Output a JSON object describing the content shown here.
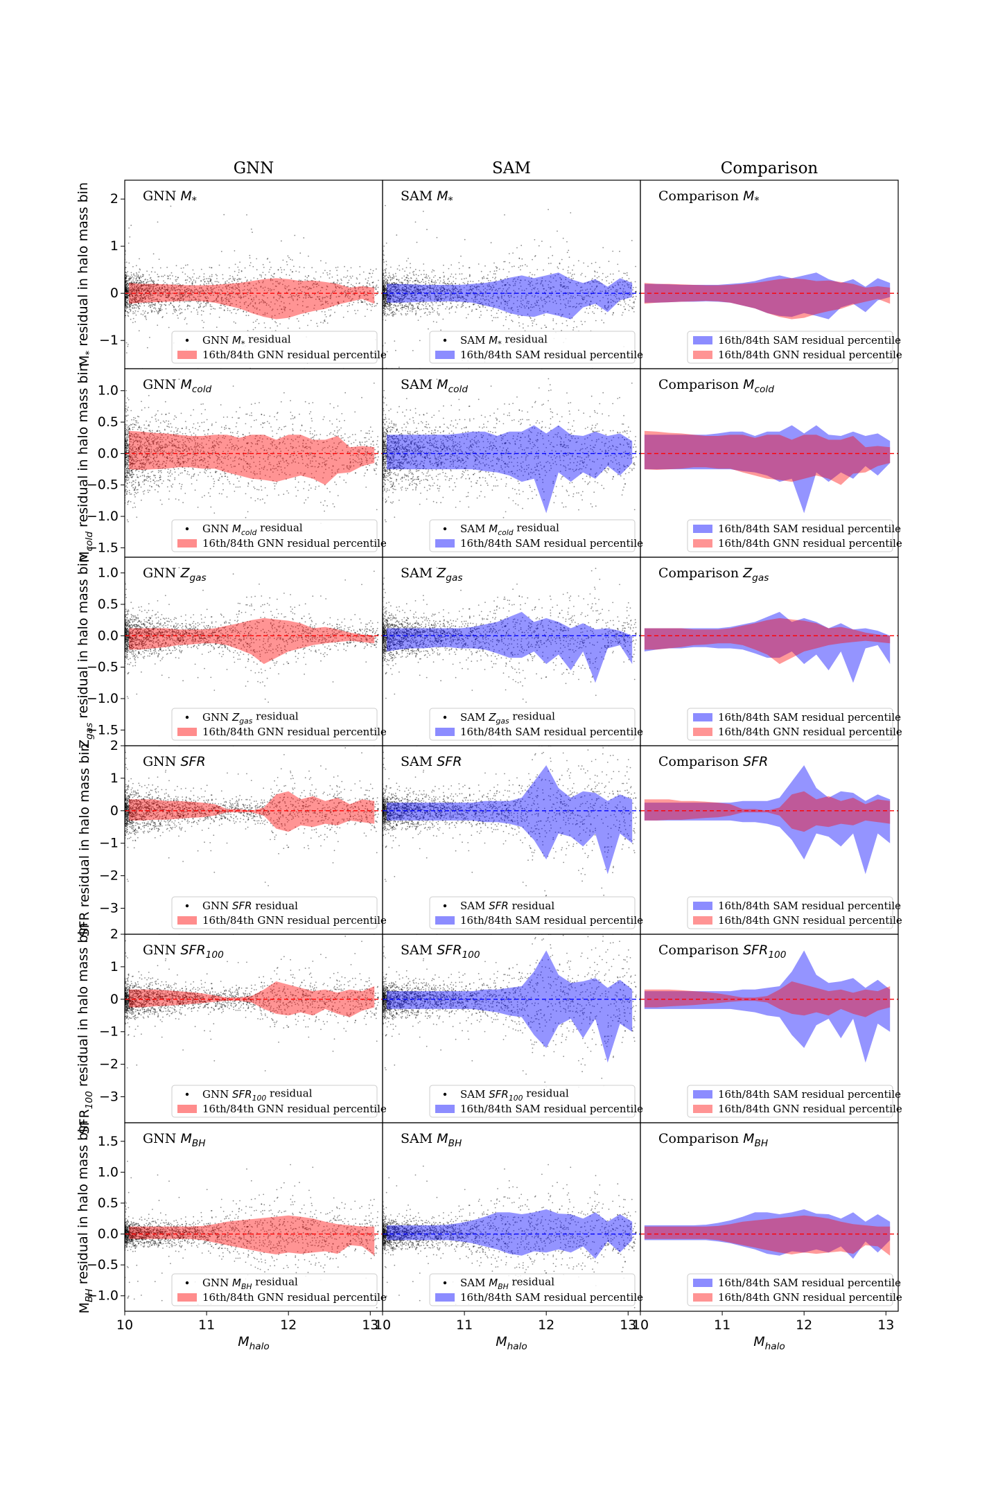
{
  "column_titles": [
    "GNN",
    "SAM",
    "Comparison"
  ],
  "x_axis": {
    "label": "M",
    "label_sub": "halo",
    "lim": [
      10,
      13.15
    ],
    "ticks": [
      10,
      11,
      12,
      13
    ]
  },
  "colors": {
    "gnn": "#ff0000",
    "sam": "#0000ff",
    "points": "#000000"
  },
  "chart_data": [
    {
      "quantity": "M*",
      "type": "scatter+area",
      "ylabel": {
        "pre": "M",
        "sub": "*",
        "post": " residual in halo mass bin"
      },
      "ylim": [
        -1.6,
        2.4
      ],
      "yticks": [
        -1,
        0,
        1,
        2
      ],
      "panel_labels": {
        "gnn": {
          "pre": "GNN ",
          "math": "M",
          "sub": "*"
        },
        "sam": {
          "pre": "SAM ",
          "math": "M",
          "sub": "*"
        },
        "cmp": {
          "pre": "Comparison ",
          "math": "M",
          "sub": "*"
        }
      },
      "legend": {
        "gnn_point": {
          "pre": "GNN ",
          "math": "M",
          "sub": "*",
          "post": " residual"
        },
        "gnn_band": "16th/84th GNN residual percentile",
        "sam_point": {
          "pre": "SAM ",
          "math": "M",
          "sub": "*",
          "post": " residual"
        },
        "sam_band": "16th/84th SAM residual percentile"
      },
      "x": [
        10.05,
        10.2,
        10.35,
        10.5,
        10.65,
        10.8,
        10.95,
        11.1,
        11.25,
        11.4,
        11.55,
        11.7,
        11.85,
        12.0,
        12.15,
        12.3,
        12.45,
        12.6,
        12.75,
        12.9,
        13.05
      ],
      "gnn": {
        "upper": [
          0.22,
          0.2,
          0.2,
          0.19,
          0.18,
          0.17,
          0.17,
          0.18,
          0.2,
          0.22,
          0.26,
          0.3,
          0.32,
          0.3,
          0.26,
          0.27,
          0.24,
          0.2,
          0.12,
          0.15,
          0.12
        ],
        "lower": [
          -0.22,
          -0.2,
          -0.19,
          -0.18,
          -0.17,
          -0.16,
          -0.17,
          -0.2,
          -0.26,
          -0.32,
          -0.42,
          -0.5,
          -0.55,
          -0.52,
          -0.44,
          -0.38,
          -0.33,
          -0.24,
          -0.18,
          -0.12,
          -0.22
        ]
      },
      "sam": {
        "upper": [
          0.2,
          0.2,
          0.19,
          0.18,
          0.18,
          0.18,
          0.18,
          0.2,
          0.22,
          0.26,
          0.33,
          0.38,
          0.32,
          0.38,
          0.44,
          0.3,
          0.22,
          0.3,
          0.14,
          0.32,
          0.22
        ],
        "lower": [
          -0.2,
          -0.2,
          -0.19,
          -0.18,
          -0.18,
          -0.17,
          -0.18,
          -0.2,
          -0.26,
          -0.32,
          -0.42,
          -0.48,
          -0.5,
          -0.42,
          -0.48,
          -0.55,
          -0.3,
          -0.22,
          -0.4,
          -0.15,
          -0.08
        ]
      },
      "spread": 0.36,
      "heavy_tail_up": 1.9,
      "heavy_tail_down": 1.2
    },
    {
      "quantity": "Mcold",
      "type": "scatter+area",
      "ylabel": {
        "pre": "M",
        "sub": "cold",
        "post": " residual in halo mass bin"
      },
      "ylim": [
        -1.65,
        1.35
      ],
      "yticks": [
        -1.5,
        -1.0,
        -0.5,
        0.0,
        0.5,
        1.0
      ],
      "panel_labels": {
        "gnn": {
          "pre": "GNN ",
          "math": "M",
          "sub": "cold"
        },
        "sam": {
          "pre": "SAM ",
          "math": "M",
          "sub": "cold"
        },
        "cmp": {
          "pre": "Comparison ",
          "math": "M",
          "sub": "cold"
        }
      },
      "legend": {
        "gnn_point": {
          "pre": "GNN ",
          "math": "M",
          "sub": "cold",
          "post": " residual"
        },
        "gnn_band": "16th/84th GNN residual percentile",
        "sam_point": {
          "pre": "SAM ",
          "math": "M",
          "sub": "cold",
          "post": " residual"
        },
        "sam_band": "16th/84th SAM residual percentile"
      },
      "x": [
        10.05,
        10.2,
        10.35,
        10.5,
        10.65,
        10.8,
        10.95,
        11.1,
        11.25,
        11.4,
        11.55,
        11.7,
        11.85,
        12.0,
        12.15,
        12.3,
        12.45,
        12.6,
        12.75,
        12.9,
        13.05
      ],
      "gnn": {
        "upper": [
          0.36,
          0.35,
          0.33,
          0.32,
          0.3,
          0.28,
          0.28,
          0.3,
          0.3,
          0.25,
          0.3,
          0.3,
          0.22,
          0.3,
          0.3,
          0.22,
          0.22,
          0.28,
          0.1,
          0.12,
          0.1
        ],
        "lower": [
          -0.25,
          -0.26,
          -0.25,
          -0.24,
          -0.22,
          -0.22,
          -0.24,
          -0.24,
          -0.3,
          -0.35,
          -0.4,
          -0.42,
          -0.45,
          -0.4,
          -0.35,
          -0.4,
          -0.5,
          -0.32,
          -0.3,
          -0.2,
          -0.15
        ]
      },
      "sam": {
        "upper": [
          0.3,
          0.3,
          0.3,
          0.3,
          0.3,
          0.3,
          0.32,
          0.35,
          0.35,
          0.28,
          0.35,
          0.35,
          0.45,
          0.32,
          0.45,
          0.3,
          0.28,
          0.35,
          0.28,
          0.32,
          0.2
        ],
        "lower": [
          -0.25,
          -0.25,
          -0.25,
          -0.25,
          -0.25,
          -0.25,
          -0.25,
          -0.25,
          -0.28,
          -0.3,
          -0.35,
          -0.45,
          -0.4,
          -0.95,
          -0.3,
          -0.45,
          -0.3,
          -0.4,
          -0.2,
          -0.35,
          -0.15
        ]
      },
      "spread": 0.3,
      "heavy_tail_up": 0.9,
      "heavy_tail_down": 1.2
    },
    {
      "quantity": "Zgas",
      "type": "scatter+area",
      "ylabel": {
        "pre": "Z",
        "sub": "gas",
        "post": " residual in halo mass bin"
      },
      "ylim": [
        -1.75,
        1.25
      ],
      "yticks": [
        -1.5,
        -1.0,
        -0.5,
        0.0,
        0.5,
        1.0
      ],
      "panel_labels": {
        "gnn": {
          "pre": "GNN ",
          "math": "Z",
          "sub": "gas"
        },
        "sam": {
          "pre": "SAM ",
          "math": "Z",
          "sub": "gas"
        },
        "cmp": {
          "pre": "Comparison ",
          "math": "Z",
          "sub": "gas"
        }
      },
      "legend": {
        "gnn_point": {
          "pre": "GNN ",
          "math": "Z",
          "sub": "gas",
          "post": " residual"
        },
        "gnn_band": "16th/84th GNN residual percentile",
        "sam_point": {
          "pre": "SAM ",
          "math": "Z",
          "sub": "gas",
          "post": " residual"
        },
        "sam_band": "16th/84th SAM residual percentile"
      },
      "x": [
        10.05,
        10.2,
        10.35,
        10.5,
        10.65,
        10.8,
        10.95,
        11.1,
        11.25,
        11.4,
        11.55,
        11.7,
        11.85,
        12.0,
        12.15,
        12.3,
        12.45,
        12.6,
        12.75,
        12.9,
        13.05
      ],
      "gnn": {
        "upper": [
          0.12,
          0.12,
          0.12,
          0.12,
          0.1,
          0.1,
          0.1,
          0.12,
          0.16,
          0.2,
          0.25,
          0.28,
          0.26,
          0.24,
          0.2,
          0.12,
          0.14,
          0.1,
          0.05,
          0.02,
          0.0
        ],
        "lower": [
          -0.22,
          -0.22,
          -0.2,
          -0.18,
          -0.15,
          -0.14,
          -0.12,
          -0.12,
          -0.15,
          -0.22,
          -0.3,
          -0.45,
          -0.35,
          -0.25,
          -0.2,
          -0.15,
          -0.12,
          -0.1,
          -0.08,
          -0.1,
          -0.12
        ]
      },
      "sam": {
        "upper": [
          0.12,
          0.12,
          0.12,
          0.12,
          0.12,
          0.12,
          0.12,
          0.14,
          0.18,
          0.22,
          0.3,
          0.38,
          0.22,
          0.28,
          0.22,
          0.12,
          0.2,
          0.1,
          0.12,
          0.08,
          0.0
        ],
        "lower": [
          -0.25,
          -0.22,
          -0.2,
          -0.2,
          -0.18,
          -0.18,
          -0.2,
          -0.2,
          -0.22,
          -0.28,
          -0.35,
          -0.35,
          -0.25,
          -0.45,
          -0.3,
          -0.55,
          -0.25,
          -0.75,
          -0.2,
          -0.15,
          -0.45
        ]
      },
      "spread": 0.17,
      "heavy_tail_up": 0.7,
      "heavy_tail_down": 1.1
    },
    {
      "quantity": "SFR",
      "type": "scatter+area",
      "ylabel": {
        "pre": "SFR",
        "sub": "",
        "post": " residual in halo mass bin"
      },
      "ylim": [
        -3.8,
        2.0
      ],
      "yticks": [
        -3,
        -2,
        -1,
        0,
        1,
        2
      ],
      "panel_labels": {
        "gnn": {
          "pre": "GNN ",
          "math": "SFR",
          "sub": ""
        },
        "sam": {
          "pre": "SAM ",
          "math": "SFR",
          "sub": ""
        },
        "cmp": {
          "pre": "Comparison ",
          "math": "SFR",
          "sub": ""
        }
      },
      "legend": {
        "gnn_point": {
          "pre": "GNN ",
          "math": "SFR",
          "sub": "",
          "post": " residual"
        },
        "gnn_band": "16th/84th GNN residual percentile",
        "sam_point": {
          "pre": "SAM ",
          "math": "SFR",
          "sub": "",
          "post": " residual"
        },
        "sam_band": "16th/84th SAM residual percentile"
      },
      "x": [
        10.05,
        10.2,
        10.35,
        10.5,
        10.65,
        10.8,
        10.95,
        11.1,
        11.25,
        11.4,
        11.55,
        11.7,
        11.85,
        12.0,
        12.15,
        12.3,
        12.45,
        12.6,
        12.75,
        12.9,
        13.05
      ],
      "gnn": {
        "upper": [
          0.35,
          0.35,
          0.35,
          0.3,
          0.3,
          0.28,
          0.25,
          0.2,
          0.05,
          0.05,
          0.0,
          0.1,
          0.5,
          0.6,
          0.35,
          0.45,
          0.3,
          0.4,
          0.2,
          0.35,
          0.3
        ],
        "lower": [
          -0.3,
          -0.3,
          -0.28,
          -0.28,
          -0.25,
          -0.22,
          -0.2,
          -0.15,
          -0.05,
          -0.05,
          -0.05,
          -0.15,
          -0.55,
          -0.65,
          -0.45,
          -0.5,
          -0.4,
          -0.45,
          -0.3,
          -0.35,
          -0.4
        ]
      },
      "sam": {
        "upper": [
          0.25,
          0.25,
          0.25,
          0.25,
          0.25,
          0.25,
          0.25,
          0.25,
          0.3,
          0.3,
          0.3,
          0.4,
          0.9,
          1.4,
          0.7,
          0.4,
          0.6,
          0.55,
          0.3,
          0.5,
          0.35
        ],
        "lower": [
          -0.3,
          -0.3,
          -0.3,
          -0.3,
          -0.3,
          -0.3,
          -0.3,
          -0.3,
          -0.35,
          -0.35,
          -0.4,
          -0.5,
          -0.9,
          -1.5,
          -0.7,
          -0.8,
          -1.1,
          -0.7,
          -1.95,
          -0.7,
          -1.0
        ]
      },
      "spread": 0.32,
      "heavy_tail_up": 1.3,
      "heavy_tail_down": 2.4
    },
    {
      "quantity": "SFR100",
      "type": "scatter+area",
      "ylabel": {
        "pre": "SFR",
        "sub": "100",
        "post": " residual in halo mass bin"
      },
      "ylim": [
        -3.8,
        2.0
      ],
      "yticks": [
        -3,
        -2,
        -1,
        0,
        1,
        2
      ],
      "panel_labels": {
        "gnn": {
          "pre": "GNN ",
          "math": "SFR",
          "sub": "100"
        },
        "sam": {
          "pre": "SAM ",
          "math": "SFR",
          "sub": "100"
        },
        "cmp": {
          "pre": "Comparison ",
          "math": "SFR",
          "sub": "100"
        }
      },
      "legend": {
        "gnn_point": {
          "pre": "GNN ",
          "math": "SFR",
          "sub": "100",
          "post": " residual"
        },
        "gnn_band": "16th/84th GNN residual percentile",
        "sam_point": {
          "pre": "SAM ",
          "math": "SFR",
          "sub": "100",
          "post": " residual"
        },
        "sam_band": "16th/84th SAM residual percentile"
      },
      "x": [
        10.05,
        10.2,
        10.35,
        10.5,
        10.65,
        10.8,
        10.95,
        11.1,
        11.25,
        11.4,
        11.55,
        11.7,
        11.85,
        12.0,
        12.15,
        12.3,
        12.45,
        12.6,
        12.75,
        12.9,
        13.05
      ],
      "gnn": {
        "upper": [
          0.3,
          0.3,
          0.3,
          0.28,
          0.25,
          0.22,
          0.18,
          0.12,
          0.05,
          0.05,
          0.1,
          0.3,
          0.55,
          0.45,
          0.35,
          0.25,
          0.3,
          0.2,
          0.3,
          0.25,
          0.4
        ],
        "lower": [
          -0.25,
          -0.25,
          -0.22,
          -0.2,
          -0.18,
          -0.15,
          -0.12,
          -0.08,
          -0.05,
          -0.05,
          -0.1,
          -0.3,
          -0.45,
          -0.5,
          -0.4,
          -0.5,
          -0.3,
          -0.45,
          -0.55,
          -0.35,
          -0.25
        ]
      },
      "sam": {
        "upper": [
          0.25,
          0.25,
          0.25,
          0.25,
          0.25,
          0.25,
          0.25,
          0.25,
          0.3,
          0.3,
          0.35,
          0.4,
          0.85,
          1.5,
          0.75,
          0.5,
          0.55,
          0.65,
          0.35,
          0.6,
          0.3
        ],
        "lower": [
          -0.3,
          -0.3,
          -0.3,
          -0.3,
          -0.3,
          -0.3,
          -0.3,
          -0.3,
          -0.35,
          -0.4,
          -0.5,
          -0.55,
          -1.1,
          -1.5,
          -0.8,
          -0.6,
          -1.2,
          -0.6,
          -1.95,
          -0.75,
          -1.0
        ]
      },
      "spread": 0.32,
      "heavy_tail_up": 1.3,
      "heavy_tail_down": 2.4
    },
    {
      "quantity": "MBH",
      "type": "scatter+area",
      "ylabel": {
        "pre": "M",
        "sub": "BH",
        "post": " residual in halo mass bin"
      },
      "ylim": [
        -1.25,
        1.8
      ],
      "yticks": [
        -1.0,
        -0.5,
        0.0,
        0.5,
        1.0,
        1.5
      ],
      "panel_labels": {
        "gnn": {
          "pre": "GNN ",
          "math": "M",
          "sub": "BH"
        },
        "sam": {
          "pre": "SAM ",
          "math": "M",
          "sub": "BH"
        },
        "cmp": {
          "pre": "Comparison ",
          "math": "M",
          "sub": "BH"
        }
      },
      "legend": {
        "gnn_point": {
          "pre": "GNN ",
          "math": "M",
          "sub": "BH",
          "post": " residual"
        },
        "gnn_band": "16th/84th GNN residual percentile",
        "sam_point": {
          "pre": "SAM ",
          "math": "M",
          "sub": "BH",
          "post": " residual"
        },
        "sam_band": "16th/84th SAM residual percentile"
      },
      "x": [
        10.05,
        10.2,
        10.35,
        10.5,
        10.65,
        10.8,
        10.95,
        11.1,
        11.25,
        11.4,
        11.55,
        11.7,
        11.85,
        12.0,
        12.15,
        12.3,
        12.45,
        12.6,
        12.75,
        12.9,
        13.05
      ],
      "gnn": {
        "upper": [
          0.12,
          0.12,
          0.12,
          0.12,
          0.12,
          0.12,
          0.13,
          0.16,
          0.2,
          0.22,
          0.24,
          0.26,
          0.28,
          0.3,
          0.28,
          0.25,
          0.2,
          0.16,
          0.14,
          0.12,
          0.12
        ],
        "lower": [
          -0.08,
          -0.08,
          -0.08,
          -0.08,
          -0.08,
          -0.08,
          -0.1,
          -0.14,
          -0.18,
          -0.22,
          -0.26,
          -0.3,
          -0.33,
          -0.3,
          -0.32,
          -0.3,
          -0.28,
          -0.32,
          -0.18,
          -0.2,
          -0.35
        ]
      },
      "sam": {
        "upper": [
          0.14,
          0.14,
          0.14,
          0.14,
          0.14,
          0.15,
          0.18,
          0.22,
          0.28,
          0.35,
          0.35,
          0.32,
          0.35,
          0.4,
          0.33,
          0.32,
          0.25,
          0.35,
          0.2,
          0.32,
          0.2
        ],
        "lower": [
          -0.1,
          -0.1,
          -0.1,
          -0.1,
          -0.1,
          -0.1,
          -0.12,
          -0.15,
          -0.2,
          -0.25,
          -0.32,
          -0.35,
          -0.28,
          -0.3,
          -0.25,
          -0.3,
          -0.2,
          -0.4,
          -0.12,
          -0.3,
          -0.1
        ]
      },
      "spread": 0.16,
      "heavy_tail_up": 1.2,
      "heavy_tail_down": 0.6
    }
  ]
}
